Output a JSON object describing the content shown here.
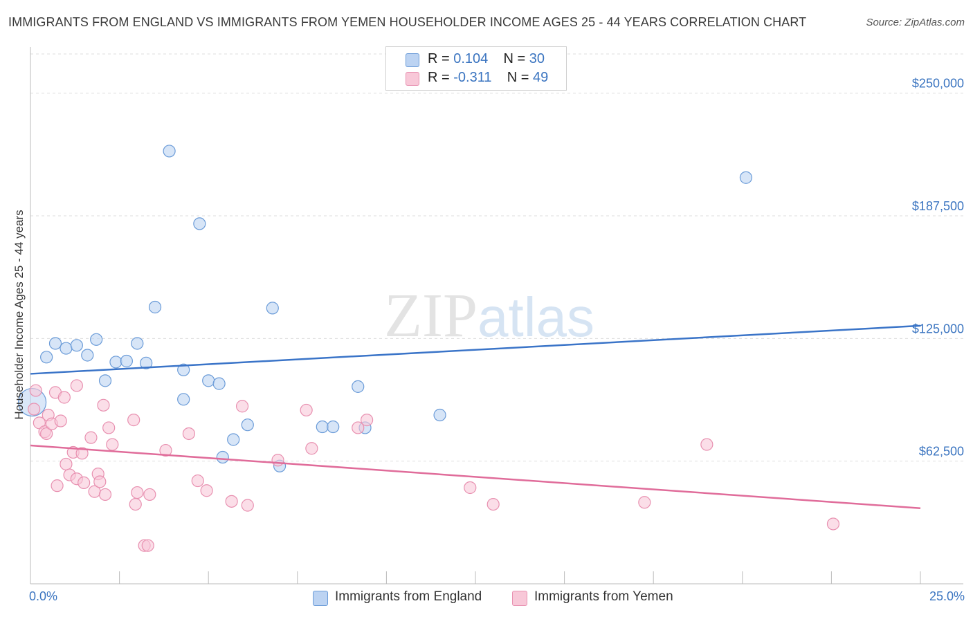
{
  "header": {
    "title": "IMMIGRANTS FROM ENGLAND VS IMMIGRANTS FROM YEMEN HOUSEHOLDER INCOME AGES 25 - 44 YEARS CORRELATION CHART",
    "source": "Source: ZipAtlas.com"
  },
  "watermark": {
    "zip": "ZIP",
    "atlas": "atlas"
  },
  "legend_top": {
    "england": {
      "r_label": "R =",
      "r_value": "0.104",
      "n_label": "N =",
      "n_value": "30"
    },
    "yemen": {
      "r_label": "R =",
      "r_value": "-0.311",
      "n_label": "N =",
      "n_value": "49"
    }
  },
  "legend_bottom": {
    "england": "Immigrants from England",
    "yemen": "Immigrants from Yemen"
  },
  "chart_data": {
    "type": "scatter",
    "title": "IMMIGRANTS FROM ENGLAND VS IMMIGRANTS FROM YEMEN HOUSEHOLDER INCOME AGES 25 - 44 YEARS CORRELATION CHART",
    "xlabel": "",
    "ylabel": "Householder Income Ages 25 - 44 years",
    "xlim": [
      0,
      25
    ],
    "ylim": [
      0,
      250000
    ],
    "x_tick_labels": [
      "0.0%",
      "25.0%"
    ],
    "y_ticks": [
      62500,
      125000,
      187500,
      250000
    ],
    "y_tick_labels": [
      "$62,500",
      "$125,000",
      "$187,500",
      "$250,000"
    ],
    "grid": true,
    "legend_placement": "top-center",
    "colors": {
      "england_fill": "#bcd3f2",
      "england_stroke": "#6a9bd8",
      "england_line": "#3a74c8",
      "yemen_fill": "#f8c8d8",
      "yemen_stroke": "#e890b0",
      "yemen_line": "#e06c9a",
      "tick_label": "#3a74c0"
    },
    "series": [
      {
        "name": "Immigrants from England",
        "r": 0.104,
        "n": 30,
        "trend": {
          "x": [
            0,
            25
          ],
          "y": [
            107000,
            131500
          ]
        },
        "points": [
          [
            0.05,
            92500
          ],
          [
            0.45,
            115500
          ],
          [
            0.7,
            122500
          ],
          [
            1.0,
            120000
          ],
          [
            1.3,
            121500
          ],
          [
            1.6,
            116500
          ],
          [
            1.85,
            124500
          ],
          [
            2.1,
            103500
          ],
          [
            2.4,
            113000
          ],
          [
            2.7,
            113500
          ],
          [
            3.0,
            122500
          ],
          [
            3.25,
            112500
          ],
          [
            3.5,
            141000
          ],
          [
            3.9,
            220500
          ],
          [
            4.3,
            94000
          ],
          [
            4.3,
            109000
          ],
          [
            4.75,
            183500
          ],
          [
            5.0,
            103500
          ],
          [
            5.3,
            102000
          ],
          [
            5.7,
            73500
          ],
          [
            5.4,
            64500
          ],
          [
            6.1,
            81000
          ],
          [
            6.8,
            140500
          ],
          [
            7.0,
            60000
          ],
          [
            8.2,
            80000
          ],
          [
            8.5,
            80000
          ],
          [
            9.2,
            100500
          ],
          [
            9.4,
            79500
          ],
          [
            11.5,
            86000
          ],
          [
            20.1,
            207000
          ]
        ]
      },
      {
        "name": "Immigrants from Yemen",
        "r": -0.311,
        "n": 49,
        "trend": {
          "x": [
            0,
            25
          ],
          "y": [
            70500,
            38500
          ]
        },
        "points": [
          [
            0.1,
            89000
          ],
          [
            0.15,
            98500
          ],
          [
            0.25,
            82000
          ],
          [
            0.4,
            77500
          ],
          [
            0.45,
            76500
          ],
          [
            0.5,
            86000
          ],
          [
            0.6,
            81500
          ],
          [
            0.7,
            97500
          ],
          [
            0.75,
            50000
          ],
          [
            0.85,
            83000
          ],
          [
            0.95,
            95000
          ],
          [
            1.0,
            61000
          ],
          [
            1.1,
            55500
          ],
          [
            1.2,
            67000
          ],
          [
            1.3,
            101000
          ],
          [
            1.3,
            53500
          ],
          [
            1.45,
            66500
          ],
          [
            1.5,
            51500
          ],
          [
            1.7,
            74500
          ],
          [
            1.8,
            47000
          ],
          [
            1.9,
            56000
          ],
          [
            1.95,
            52000
          ],
          [
            2.05,
            91000
          ],
          [
            2.1,
            45500
          ],
          [
            2.2,
            79500
          ],
          [
            2.3,
            71000
          ],
          [
            2.9,
            83500
          ],
          [
            2.95,
            40500
          ],
          [
            3.0,
            46500
          ],
          [
            3.2,
            19500
          ],
          [
            3.3,
            19500
          ],
          [
            3.35,
            45500
          ],
          [
            3.8,
            68000
          ],
          [
            4.45,
            76500
          ],
          [
            4.7,
            52500
          ],
          [
            4.95,
            47500
          ],
          [
            5.65,
            42000
          ],
          [
            5.95,
            90500
          ],
          [
            6.1,
            40000
          ],
          [
            6.95,
            63000
          ],
          [
            7.75,
            88500
          ],
          [
            7.9,
            69000
          ],
          [
            9.2,
            79500
          ],
          [
            9.45,
            83500
          ],
          [
            12.35,
            49000
          ],
          [
            13.0,
            40500
          ],
          [
            17.25,
            41500
          ],
          [
            19.0,
            71000
          ],
          [
            22.55,
            30500
          ]
        ]
      }
    ]
  }
}
